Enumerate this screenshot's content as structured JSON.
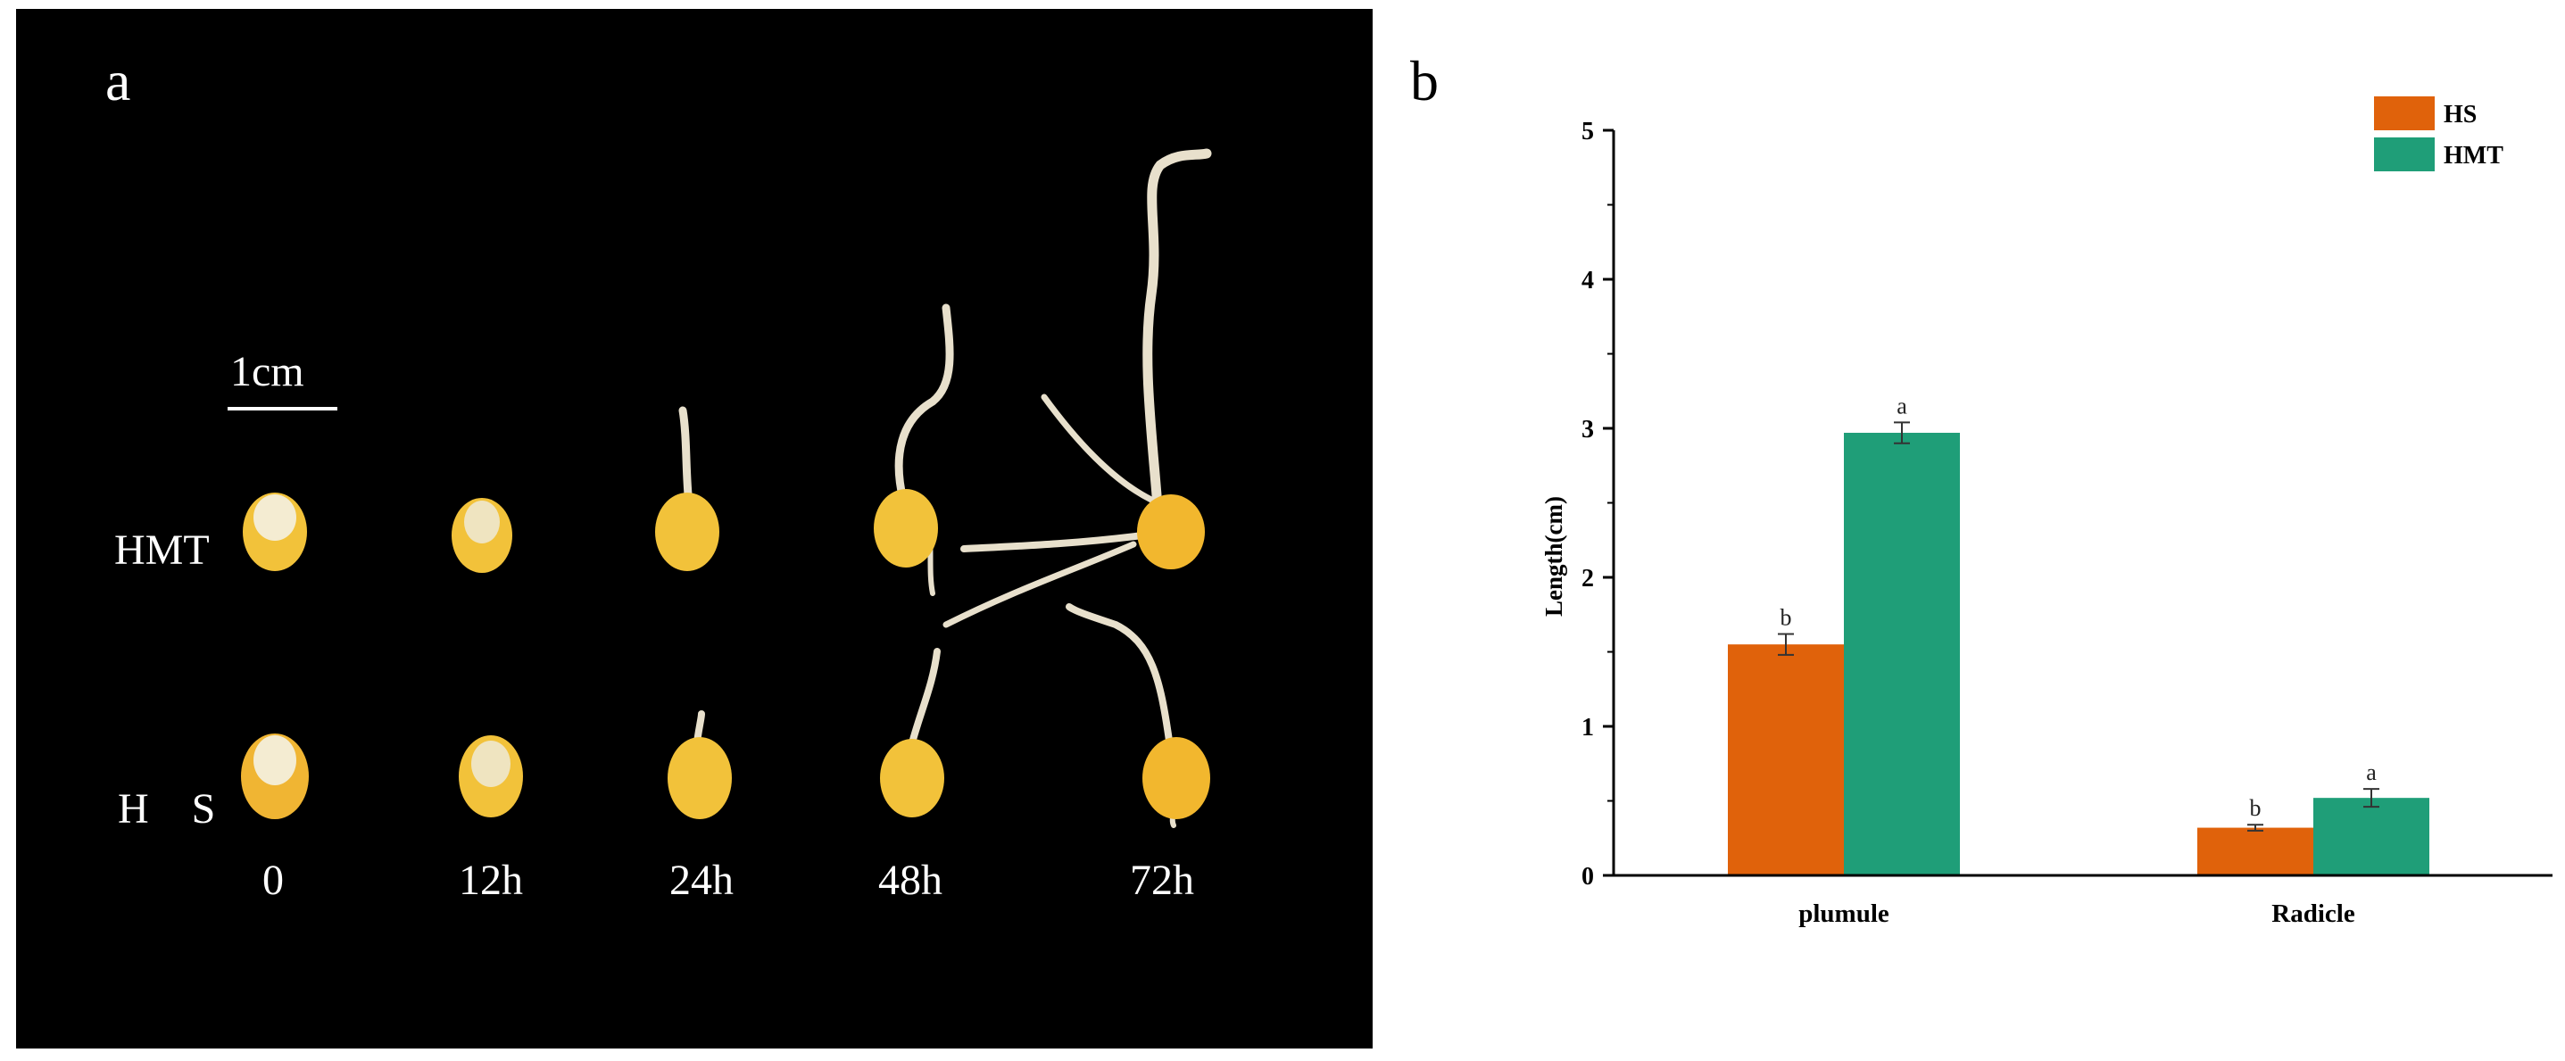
{
  "panel_a": {
    "letter": "a",
    "scale_bar_label": "1cm",
    "row_labels": [
      "HMT",
      "H    S"
    ],
    "time_labels": [
      "0",
      "12h",
      "24h",
      "48h",
      "72h"
    ],
    "colors": {
      "background": "#000000",
      "text": "#ffffff",
      "kernel": "#f2c23a",
      "sprout": "#e8e0cc"
    }
  },
  "panel_b": {
    "letter": "b"
  },
  "chart_data": {
    "type": "bar",
    "categories": [
      "plumule",
      "Radicle"
    ],
    "series": [
      {
        "name": "HS",
        "values": [
          1.55,
          0.32
        ],
        "errors": [
          0.07,
          0.02
        ],
        "letters": [
          "b",
          "b"
        ],
        "color": "#e0620b"
      },
      {
        "name": "HMT",
        "values": [
          2.97,
          0.52
        ],
        "errors": [
          0.07,
          0.06
        ],
        "letters": [
          "a",
          "a"
        ],
        "color": "#1f9e78"
      }
    ],
    "title": "",
    "xlabel": "",
    "ylabel": "Length(cm)",
    "ylim": [
      0,
      5
    ],
    "yticks": [
      "0",
      "1",
      "2",
      "3",
      "4",
      "5"
    ],
    "grid": false,
    "legend_position": "top-right"
  }
}
